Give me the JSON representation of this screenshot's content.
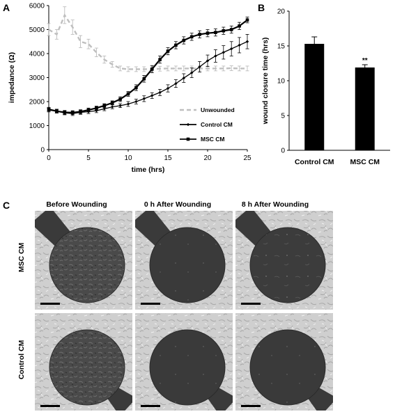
{
  "panel_labels": {
    "a": "A",
    "b": "B",
    "c": "C"
  },
  "chart_data": [
    {
      "type": "line",
      "panel": "A",
      "ylabel": "impedance (Ω)",
      "xlabel": "time (hrs)",
      "xlim": [
        0,
        25
      ],
      "ylim": [
        0,
        6000
      ],
      "xticks": [
        "0",
        "5",
        "10",
        "15",
        "20",
        "25"
      ],
      "yticks": [
        "0",
        "1000",
        "2000",
        "3000",
        "4000",
        "5000",
        "6000"
      ],
      "grid": false,
      "legend_position": "lower-right",
      "series": [
        {
          "name": "Unwounded",
          "color": "#bfbfbf",
          "style": "dashed",
          "x": [
            0,
            1,
            2,
            3,
            4,
            5,
            6,
            7,
            8,
            9,
            10,
            11,
            12,
            13,
            14,
            15,
            16,
            17,
            18,
            19,
            20,
            21,
            22,
            23,
            24,
            25
          ],
          "y": [
            5000,
            4800,
            5600,
            5100,
            4500,
            4400,
            4050,
            3750,
            3550,
            3380,
            3350,
            3350,
            3350,
            3350,
            3370,
            3380,
            3380,
            3380,
            3380,
            3380,
            3380,
            3380,
            3380,
            3390,
            3380,
            3380
          ],
          "err": [
            250,
            200,
            350,
            300,
            250,
            200,
            180,
            150,
            120,
            100,
            100,
            100,
            100,
            100,
            100,
            100,
            100,
            100,
            100,
            100,
            100,
            100,
            100,
            100,
            100,
            100
          ]
        },
        {
          "name": "Control CM",
          "color": "#000000",
          "style": "solid-diamond",
          "x": [
            0,
            1,
            2,
            3,
            4,
            5,
            6,
            7,
            8,
            9,
            10,
            11,
            12,
            13,
            14,
            15,
            16,
            17,
            18,
            19,
            20,
            21,
            22,
            23,
            24,
            25
          ],
          "y": [
            1650,
            1600,
            1530,
            1500,
            1550,
            1580,
            1620,
            1700,
            1780,
            1830,
            1900,
            2000,
            2120,
            2250,
            2380,
            2550,
            2750,
            2980,
            3200,
            3450,
            3700,
            3900,
            4050,
            4200,
            4350,
            4500
          ],
          "err": [
            80,
            80,
            80,
            80,
            80,
            80,
            80,
            80,
            80,
            80,
            100,
            100,
            120,
            120,
            130,
            150,
            160,
            180,
            200,
            220,
            240,
            260,
            280,
            300,
            320,
            300
          ]
        },
        {
          "name": "MSC CM",
          "color": "#000000",
          "style": "solid-square",
          "x": [
            0,
            1,
            2,
            3,
            4,
            5,
            6,
            7,
            8,
            9,
            10,
            11,
            12,
            13,
            14,
            15,
            16,
            17,
            18,
            19,
            20,
            21,
            22,
            23,
            24,
            25
          ],
          "y": [
            1680,
            1600,
            1550,
            1540,
            1580,
            1650,
            1730,
            1830,
            1950,
            2100,
            2320,
            2580,
            2950,
            3350,
            3750,
            4100,
            4350,
            4550,
            4700,
            4800,
            4850,
            4880,
            4950,
            5000,
            5150,
            5400
          ],
          "err": [
            80,
            80,
            80,
            80,
            80,
            80,
            80,
            80,
            80,
            100,
            100,
            120,
            140,
            150,
            150,
            150,
            150,
            150,
            150,
            150,
            150,
            150,
            150,
            150,
            150,
            120
          ]
        }
      ]
    },
    {
      "type": "bar",
      "panel": "B",
      "ylabel": "wound closure time (hrs)",
      "xlabel": "",
      "categories": [
        "Control CM",
        "MSC CM"
      ],
      "values": [
        15.3,
        11.9
      ],
      "err": [
        1.0,
        0.4
      ],
      "ylim": [
        0,
        20
      ],
      "yticks": [
        "0",
        "5",
        "10",
        "15",
        "20"
      ],
      "bar_color": "#000000",
      "annotations": [
        {
          "category": "MSC CM",
          "text": "**"
        }
      ]
    }
  ],
  "micrographs": {
    "column_headers": [
      "Before Wounding",
      "0 h After Wounding",
      "8 h After Wounding"
    ],
    "row_headers": [
      "MSC CM",
      "Control CM"
    ],
    "images": [
      [
        "msc-before-micrograph",
        "msc-0h-micrograph",
        "msc-8h-micrograph"
      ],
      [
        "control-before-micrograph",
        "control-0h-micrograph",
        "control-8h-micrograph"
      ]
    ]
  }
}
